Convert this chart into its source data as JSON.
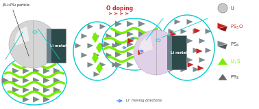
{
  "bg_color": "#ffffff",
  "panel_bg": "#2d4a4a",
  "panel_bg2": "#3a5555",
  "cyan": "#00cccc",
  "green_wave": "#77ee00",
  "gray_tri": "#7a8a8a",
  "red_tri": "#cc2222",
  "blue_arr": "#4488ff",
  "legend": {
    "li_circle_fill": "#c8c8c8",
    "li_circle_edge": "#888888",
    "ps3o_color": "#cc2222",
    "ps4_color": "#7a8a8a",
    "li2s_color": "#77ee00",
    "ps3_color": "#7a8a8a"
  },
  "sphere_left_fill": "#d5d5d5",
  "sphere_left_edge": "#aaaaaa",
  "sphere_right_fill": "#e0d0e8",
  "sphere_right_edge": "#bbaacc",
  "li_text": "Li metal",
  "o_doping_text": "O doping",
  "beta_text": "β-Li₃PS₄ particle",
  "li_move_text": "Li⁺ moving directions"
}
